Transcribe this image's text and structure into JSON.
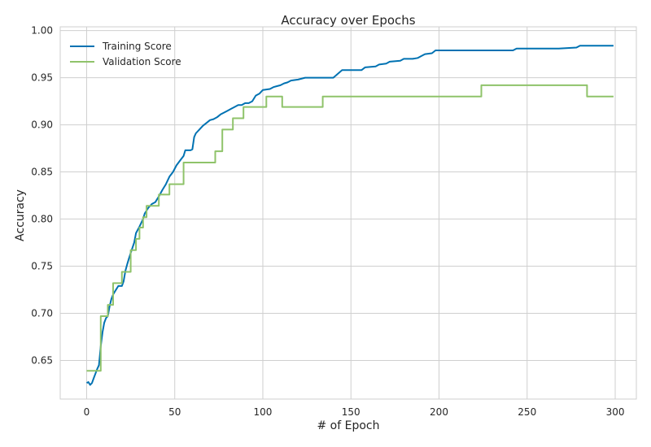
{
  "chart_data": {
    "type": "line",
    "title": "Accuracy over Epochs",
    "xlabel": "# of Epoch",
    "ylabel": "Accuracy",
    "xlim": [
      -15,
      312
    ],
    "ylim": [
      0.609,
      1.004
    ],
    "xticks": [
      0,
      50,
      100,
      150,
      200,
      250,
      300
    ],
    "yticks": [
      0.65,
      0.7,
      0.75,
      0.8,
      0.85,
      0.9,
      0.95,
      1.0
    ],
    "xtick_labels": [
      "0",
      "50",
      "100",
      "150",
      "200",
      "250",
      "300"
    ],
    "ytick_labels": [
      "0.65",
      "0.70",
      "0.75",
      "0.80",
      "0.85",
      "0.90",
      "0.95",
      "1.00"
    ],
    "grid": true,
    "legend_position": "top-left",
    "series": [
      {
        "name": "Training Score",
        "color": "#0072b2",
        "step": false,
        "points": [
          [
            0,
            0.626
          ],
          [
            1,
            0.627
          ],
          [
            2,
            0.624
          ],
          [
            3,
            0.626
          ],
          [
            4,
            0.631
          ],
          [
            5,
            0.636
          ],
          [
            6,
            0.641
          ],
          [
            7,
            0.645
          ],
          [
            8,
            0.665
          ],
          [
            9,
            0.68
          ],
          [
            10,
            0.69
          ],
          [
            11,
            0.695
          ],
          [
            12,
            0.697
          ],
          [
            13,
            0.707
          ],
          [
            14,
            0.715
          ],
          [
            15,
            0.72
          ],
          [
            16,
            0.723
          ],
          [
            18,
            0.729
          ],
          [
            20,
            0.729
          ],
          [
            21,
            0.734
          ],
          [
            22,
            0.745
          ],
          [
            23,
            0.752
          ],
          [
            24,
            0.758
          ],
          [
            25,
            0.764
          ],
          [
            27,
            0.775
          ],
          [
            28,
            0.785
          ],
          [
            30,
            0.792
          ],
          [
            32,
            0.8
          ],
          [
            33,
            0.806
          ],
          [
            35,
            0.812
          ],
          [
            37,
            0.816
          ],
          [
            39,
            0.818
          ],
          [
            41,
            0.824
          ],
          [
            43,
            0.831
          ],
          [
            45,
            0.837
          ],
          [
            47,
            0.845
          ],
          [
            49,
            0.85
          ],
          [
            51,
            0.857
          ],
          [
            53,
            0.862
          ],
          [
            55,
            0.867
          ],
          [
            56,
            0.873
          ],
          [
            58,
            0.873
          ],
          [
            59,
            0.873
          ],
          [
            60,
            0.874
          ],
          [
            61,
            0.887
          ],
          [
            62,
            0.891
          ],
          [
            64,
            0.895
          ],
          [
            66,
            0.899
          ],
          [
            68,
            0.902
          ],
          [
            70,
            0.905
          ],
          [
            72,
            0.906
          ],
          [
            74,
            0.908
          ],
          [
            76,
            0.911
          ],
          [
            78,
            0.913
          ],
          [
            80,
            0.915
          ],
          [
            82,
            0.917
          ],
          [
            84,
            0.919
          ],
          [
            86,
            0.921
          ],
          [
            88,
            0.921
          ],
          [
            90,
            0.923
          ],
          [
            92,
            0.923
          ],
          [
            94,
            0.925
          ],
          [
            96,
            0.931
          ],
          [
            98,
            0.933
          ],
          [
            100,
            0.937
          ],
          [
            104,
            0.938
          ],
          [
            106,
            0.94
          ],
          [
            108,
            0.941
          ],
          [
            110,
            0.942
          ],
          [
            112,
            0.944
          ],
          [
            114,
            0.945
          ],
          [
            116,
            0.947
          ],
          [
            120,
            0.948
          ],
          [
            124,
            0.95
          ],
          [
            128,
            0.95
          ],
          [
            140,
            0.95
          ],
          [
            145,
            0.958
          ],
          [
            148,
            0.958
          ],
          [
            152,
            0.958
          ],
          [
            156,
            0.958
          ],
          [
            158,
            0.961
          ],
          [
            164,
            0.962
          ],
          [
            166,
            0.964
          ],
          [
            170,
            0.965
          ],
          [
            172,
            0.967
          ],
          [
            178,
            0.968
          ],
          [
            180,
            0.97
          ],
          [
            185,
            0.97
          ],
          [
            188,
            0.971
          ],
          [
            190,
            0.973
          ],
          [
            192,
            0.975
          ],
          [
            196,
            0.976
          ],
          [
            198,
            0.979
          ],
          [
            210,
            0.979
          ],
          [
            220,
            0.979
          ],
          [
            230,
            0.979
          ],
          [
            242,
            0.979
          ],
          [
            244,
            0.981
          ],
          [
            255,
            0.981
          ],
          [
            268,
            0.981
          ],
          [
            278,
            0.982
          ],
          [
            280,
            0.984
          ],
          [
            290,
            0.984
          ],
          [
            299,
            0.984
          ]
        ]
      },
      {
        "name": "Validation Score",
        "color": "#8fc36a",
        "step": true,
        "points": [
          [
            0,
            0.639
          ],
          [
            7,
            0.639
          ],
          [
            8,
            0.697
          ],
          [
            11,
            0.697
          ],
          [
            12,
            0.709
          ],
          [
            14,
            0.709
          ],
          [
            15,
            0.732
          ],
          [
            19,
            0.732
          ],
          [
            20,
            0.744
          ],
          [
            24,
            0.744
          ],
          [
            25,
            0.767
          ],
          [
            27,
            0.767
          ],
          [
            28,
            0.779
          ],
          [
            29,
            0.779
          ],
          [
            30,
            0.791
          ],
          [
            31,
            0.791
          ],
          [
            32,
            0.802
          ],
          [
            33,
            0.802
          ],
          [
            34,
            0.814
          ],
          [
            38,
            0.814
          ],
          [
            40,
            0.814
          ],
          [
            41,
            0.826
          ],
          [
            46,
            0.826
          ],
          [
            47,
            0.837
          ],
          [
            54,
            0.837
          ],
          [
            55,
            0.86
          ],
          [
            72,
            0.86
          ],
          [
            73,
            0.872
          ],
          [
            76,
            0.872
          ],
          [
            77,
            0.895
          ],
          [
            82,
            0.895
          ],
          [
            83,
            0.907
          ],
          [
            88,
            0.907
          ],
          [
            89,
            0.919
          ],
          [
            101,
            0.919
          ],
          [
            102,
            0.93
          ],
          [
            110,
            0.93
          ],
          [
            111,
            0.919
          ],
          [
            133,
            0.919
          ],
          [
            134,
            0.93
          ],
          [
            223,
            0.93
          ],
          [
            224,
            0.942
          ],
          [
            283,
            0.942
          ],
          [
            284,
            0.93
          ],
          [
            299,
            0.93
          ]
        ]
      }
    ]
  }
}
